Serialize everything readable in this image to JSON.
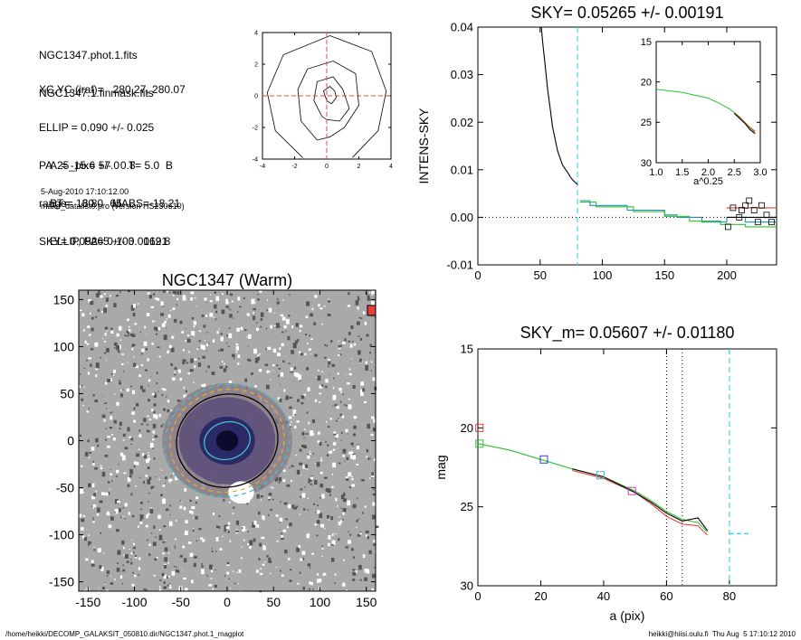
{
  "info": {
    "lines_a": [
      "NGC1347.phot.1.fits",
      "NGC1347.1.finmask.fits"
    ],
    "lines_b": [
      "XC,YC (iraf)=   280.27, 280.07",
      "ELLIP = 0.090 +/- 0.025",
      "PA   = -15.6 +/-   0.8",
      "range=   60.-   65.",
      "SKY= 0.05265 +/- 0.00191"
    ],
    "lines_c": [
      "A25_pix= 57.0   T= 5.0  B",
      "BT=  13.80   MABS=-18.21",
      "ELLIP, PA= 0.103   162.8"
    ],
    "date": "5-Aug-2010 17:10:12.00",
    "program": "make_datalist0.pro (version HS230610)"
  },
  "footer": {
    "left": "/home/heikki/DECOMP_GALAKSIT_050810.dir/NGC1347.phot.1_magplot",
    "right": "heikki@hiisi.oulu.fi  Thu Aug  5 17:10:12 2010"
  },
  "chart_data": [
    {
      "type": "line",
      "panel": "contour",
      "title": "",
      "xlabel": "",
      "ylabel": "",
      "xlim": [
        -4,
        4
      ],
      "ylim": [
        -4,
        4
      ],
      "x_ticks": [
        -4,
        -2,
        0,
        2,
        4
      ],
      "y_ticks": [
        -4,
        -2,
        0,
        2,
        4
      ],
      "contours": [
        [
          [
            -1.5,
            -3.9
          ],
          [
            -3.2,
            -2.2
          ],
          [
            -3.7,
            0.2
          ],
          [
            -2.7,
            2.6
          ],
          [
            0.2,
            3.8
          ],
          [
            2.8,
            2.8
          ],
          [
            3.7,
            0.3
          ],
          [
            3.2,
            -2.2
          ],
          [
            1.6,
            -3.9
          ]
        ],
        [
          [
            -0.6,
            -2.8
          ],
          [
            -1.6,
            -1.6
          ],
          [
            -1.8,
            0.4
          ],
          [
            -1.2,
            1.7
          ],
          [
            0.4,
            2.2
          ],
          [
            1.8,
            1.4
          ],
          [
            2.0,
            -0.6
          ],
          [
            1.1,
            -2.0
          ],
          [
            0.2,
            -2.6
          ],
          [
            -0.6,
            -2.8
          ]
        ],
        [
          [
            -0.3,
            -1.3
          ],
          [
            -0.8,
            -0.3
          ],
          [
            -0.6,
            0.9
          ],
          [
            0.4,
            1.2
          ],
          [
            1.0,
            0.4
          ],
          [
            1.4,
            -0.8
          ],
          [
            0.8,
            -1.6
          ],
          [
            0.0,
            -1.5
          ],
          [
            -0.3,
            -1.3
          ]
        ],
        [
          [
            0.0,
            -0.3
          ],
          [
            -0.2,
            0.3
          ],
          [
            0.2,
            0.6
          ],
          [
            0.5,
            0.3
          ],
          [
            0.6,
            -0.1
          ],
          [
            0.3,
            -0.5
          ],
          [
            0.0,
            -0.3
          ]
        ]
      ],
      "crosshair": [
        0,
        0
      ],
      "colors": {
        "contour": "#000000",
        "crosshair": "#e8403a"
      }
    },
    {
      "type": "line",
      "panel": "intensity",
      "title": "SKY= 0.05265 +/- 0.00191",
      "xlabel": "",
      "ylabel": "INTENS-SKY",
      "xlim": [
        0,
        240
      ],
      "ylim": [
        -0.01,
        0.04
      ],
      "x_ticks": [
        0,
        50,
        100,
        150,
        200
      ],
      "y_ticks": [
        -0.01,
        0.0,
        0.01,
        0.02,
        0.03,
        0.04
      ],
      "y_tick_labels": [
        "-0.01",
        "0.00",
        "0.01",
        "0.02",
        "0.03",
        "0.04"
      ],
      "series": [
        {
          "values_x": [
            51,
            52,
            54,
            56,
            58,
            60,
            62,
            64,
            66,
            68,
            70,
            72,
            74,
            76,
            78,
            80
          ],
          "values_y": [
            0.04,
            0.037,
            0.032,
            0.027,
            0.023,
            0.019,
            0.0165,
            0.014,
            0.0125,
            0.011,
            0.0102,
            0.0095,
            0.0086,
            0.0079,
            0.0074,
            0.0069
          ],
          "color": "#000000"
        },
        {
          "values_x": [
            82,
            90,
            90,
            120,
            120,
            150,
            150,
            160,
            160,
            180,
            180,
            200,
            200,
            215,
            215,
            240
          ],
          "values_y": [
            0.0035,
            0.0035,
            0.0025,
            0.0025,
            0.0015,
            0.0015,
            0.0005,
            0.0005,
            0.0,
            0.0,
            -0.001,
            -0.001,
            0.0,
            0.0,
            -0.001,
            -0.001
          ],
          "color": "#1f8fc0"
        },
        {
          "values_x": [
            82,
            95,
            95,
            125,
            125,
            150,
            150,
            170,
            170,
            195,
            195,
            215,
            215,
            240
          ],
          "values_y": [
            0.0032,
            0.0032,
            0.0022,
            0.0022,
            0.0012,
            0.0012,
            0.0002,
            0.0002,
            -0.0008,
            -0.0008,
            -0.0015,
            -0.0015,
            -0.002,
            -0.002
          ],
          "color": "#30c030"
        },
        {
          "values_x": [
            200,
            240
          ],
          "values_y": [
            0.002,
            0.002
          ],
          "color": "#e8403a"
        },
        {
          "values_x": [
            200,
            240
          ],
          "values_y": [
            0.0,
            0.0
          ],
          "color": "#000000"
        }
      ],
      "scatter": {
        "x": [
          201,
          205,
          210,
          212,
          215,
          218,
          222,
          225,
          228,
          232,
          236
        ],
        "y": [
          -0.002,
          0.002,
          0.0,
          0.0015,
          0.0025,
          0.0035,
          0.0015,
          -0.001,
          0.0025,
          0.0005,
          -0.001
        ]
      },
      "vline": 80,
      "inset": {
        "xlabel": "a^0.25",
        "xlim": [
          1.0,
          3.0
        ],
        "ylim": [
          30,
          15
        ],
        "x_ticks": [
          1.0,
          1.5,
          2.0,
          2.5,
          3.0
        ],
        "x_tick_labels": [
          "1.0",
          "1.5",
          "2.0",
          "2.5",
          "3.0"
        ],
        "y_ticks": [
          15,
          20,
          25,
          30
        ],
        "series": [
          {
            "x": [
              1.0,
              1.5,
              2.0,
              2.2,
              2.4,
              2.6,
              2.7,
              2.8,
              2.9
            ],
            "y": [
              20.9,
              21.3,
              22.0,
              22.6,
              23.3,
              24.3,
              25.0,
              25.6,
              26.1
            ],
            "color": "#30c030"
          },
          {
            "x": [
              2.5,
              2.6,
              2.7,
              2.8,
              2.9
            ],
            "y": [
              23.8,
              24.4,
              25.0,
              25.7,
              26.2
            ],
            "color": "#e8403a"
          },
          {
            "x": [
              2.5,
              2.6,
              2.7,
              2.8,
              2.9
            ],
            "y": [
              23.9,
              24.5,
              25.1,
              25.9,
              26.4
            ],
            "color": "#000000"
          }
        ]
      }
    },
    {
      "type": "heatmap",
      "panel": "image",
      "title": "NGC1347 (Warm)",
      "xlim": [
        -160,
        160
      ],
      "ylim": [
        -160,
        160
      ],
      "x_ticks": [
        -150,
        -100,
        -50,
        0,
        50,
        100,
        150
      ],
      "y_ticks": [
        -150,
        -100,
        -50,
        0,
        50,
        100,
        150
      ],
      "center": [
        0,
        0
      ],
      "ellipses": [
        {
          "a": 68,
          "b": 60,
          "color": "#3fc3c8",
          "dash": true
        },
        {
          "a": 62,
          "b": 55,
          "color": "#d8b030",
          "dash": true
        },
        {
          "a": 55,
          "b": 50,
          "color": "#000000",
          "dash": false
        },
        {
          "a": 25,
          "b": 20,
          "color": "#3fc3c8",
          "dash": false
        }
      ]
    },
    {
      "type": "line",
      "panel": "magnitude",
      "title": "SKY_m=  0.05607 +/- 0.01180",
      "xlabel": "a (pix)",
      "ylabel": "mag",
      "xlim": [
        0,
        95
      ],
      "ylim": [
        30,
        15
      ],
      "x_ticks": [
        0,
        20,
        40,
        60,
        80
      ],
      "y_ticks": [
        15,
        20,
        25,
        30
      ],
      "series": [
        {
          "x": [
            0,
            10,
            20,
            30,
            40,
            50,
            55,
            60,
            65,
            70,
            73
          ],
          "y": [
            21.0,
            21.4,
            22.0,
            22.6,
            23.1,
            24.0,
            24.6,
            25.3,
            25.8,
            26.0,
            26.6
          ],
          "color": "#30c030"
        },
        {
          "x": [
            30,
            40,
            50,
            55,
            60,
            65,
            70,
            73
          ],
          "y": [
            22.7,
            23.2,
            24.1,
            24.8,
            25.6,
            26.1,
            26.2,
            26.8
          ],
          "color": "#e8403a"
        },
        {
          "x": [
            30,
            40,
            50,
            55,
            60,
            65,
            70,
            73
          ],
          "y": [
            22.6,
            23.1,
            24.1,
            24.7,
            25.4,
            25.9,
            25.7,
            26.5
          ],
          "color": "#000000"
        }
      ],
      "markers": [
        {
          "x": 0.5,
          "y": 20.0,
          "color": "#e8403a"
        },
        {
          "x": 0.5,
          "y": 21.0,
          "color": "#30c030"
        },
        {
          "x": 21,
          "y": 22.0,
          "color": "#2a3fd0"
        },
        {
          "x": 39,
          "y": 23.0,
          "color": "#3fc3c8"
        },
        {
          "x": 49,
          "y": 24.0,
          "color": "#c040c0"
        }
      ],
      "vlines_dotted": [
        60,
        65
      ],
      "vline_cyan": 80,
      "sky_segment": {
        "x": [
          80,
          87
        ],
        "y": 26.7
      }
    }
  ]
}
